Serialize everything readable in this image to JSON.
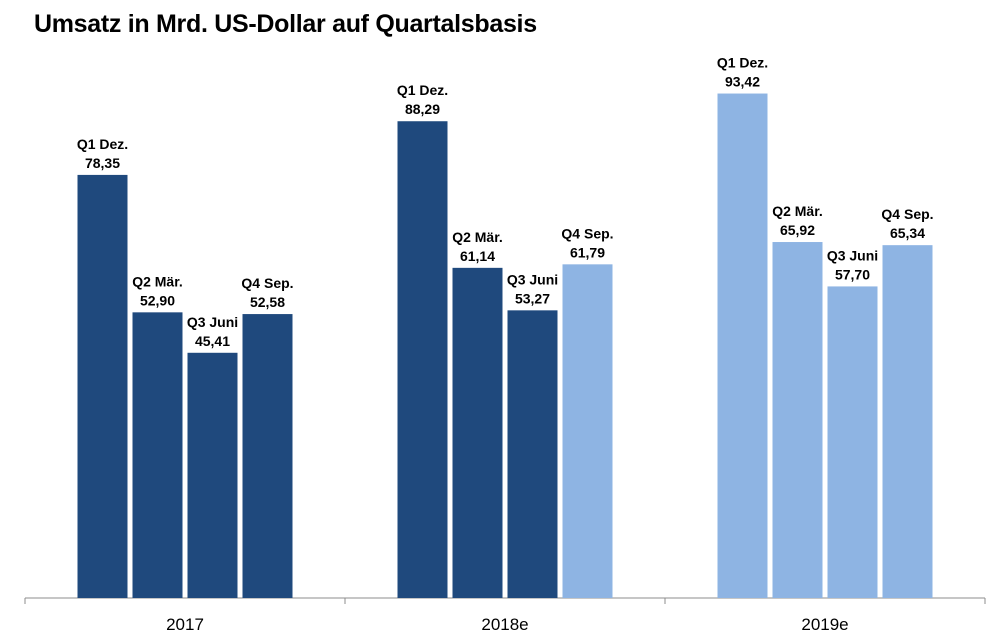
{
  "chart_data": {
    "type": "bar",
    "title": "Umsatz in Mrd. US-Dollar auf Quartalsbasis",
    "xlabel": "",
    "ylabel": "",
    "ylim": [
      0,
      100
    ],
    "grid": false,
    "legend": "none",
    "categories": [
      "2017",
      "2018e",
      "2019e"
    ],
    "groups": [
      {
        "name": "2017",
        "bars": [
          {
            "quarter": "Q1 Dez.",
            "value": 78.35,
            "value_label": "78,35",
            "color": "#1f497d"
          },
          {
            "quarter": "Q2 Mär.",
            "value": 52.9,
            "value_label": "52,90",
            "color": "#1f497d"
          },
          {
            "quarter": "Q3 Juni",
            "value": 45.41,
            "value_label": "45,41",
            "color": "#1f497d"
          },
          {
            "quarter": "Q4 Sep.",
            "value": 52.58,
            "value_label": "52,58",
            "color": "#1f497d"
          }
        ]
      },
      {
        "name": "2018e",
        "bars": [
          {
            "quarter": "Q1 Dez.",
            "value": 88.29,
            "value_label": "88,29",
            "color": "#1f497d"
          },
          {
            "quarter": "Q2 Mär.",
            "value": 61.14,
            "value_label": "61,14",
            "color": "#1f497d"
          },
          {
            "quarter": "Q3 Juni",
            "value": 53.27,
            "value_label": "53,27",
            "color": "#1f497d"
          },
          {
            "quarter": "Q4 Sep.",
            "value": 61.79,
            "value_label": "61,79",
            "color": "#8eb4e3"
          }
        ]
      },
      {
        "name": "2019e",
        "bars": [
          {
            "quarter": "Q1 Dez.",
            "value": 93.42,
            "value_label": "93,42",
            "color": "#8eb4e3"
          },
          {
            "quarter": "Q2 Mär.",
            "value": 65.92,
            "value_label": "65,92",
            "color": "#8eb4e3"
          },
          {
            "quarter": "Q3 Juni",
            "value": 57.7,
            "value_label": "57,70",
            "color": "#8eb4e3"
          },
          {
            "quarter": "Q4 Sep.",
            "value": 65.34,
            "value_label": "65,34",
            "color": "#8eb4e3"
          }
        ]
      }
    ]
  }
}
